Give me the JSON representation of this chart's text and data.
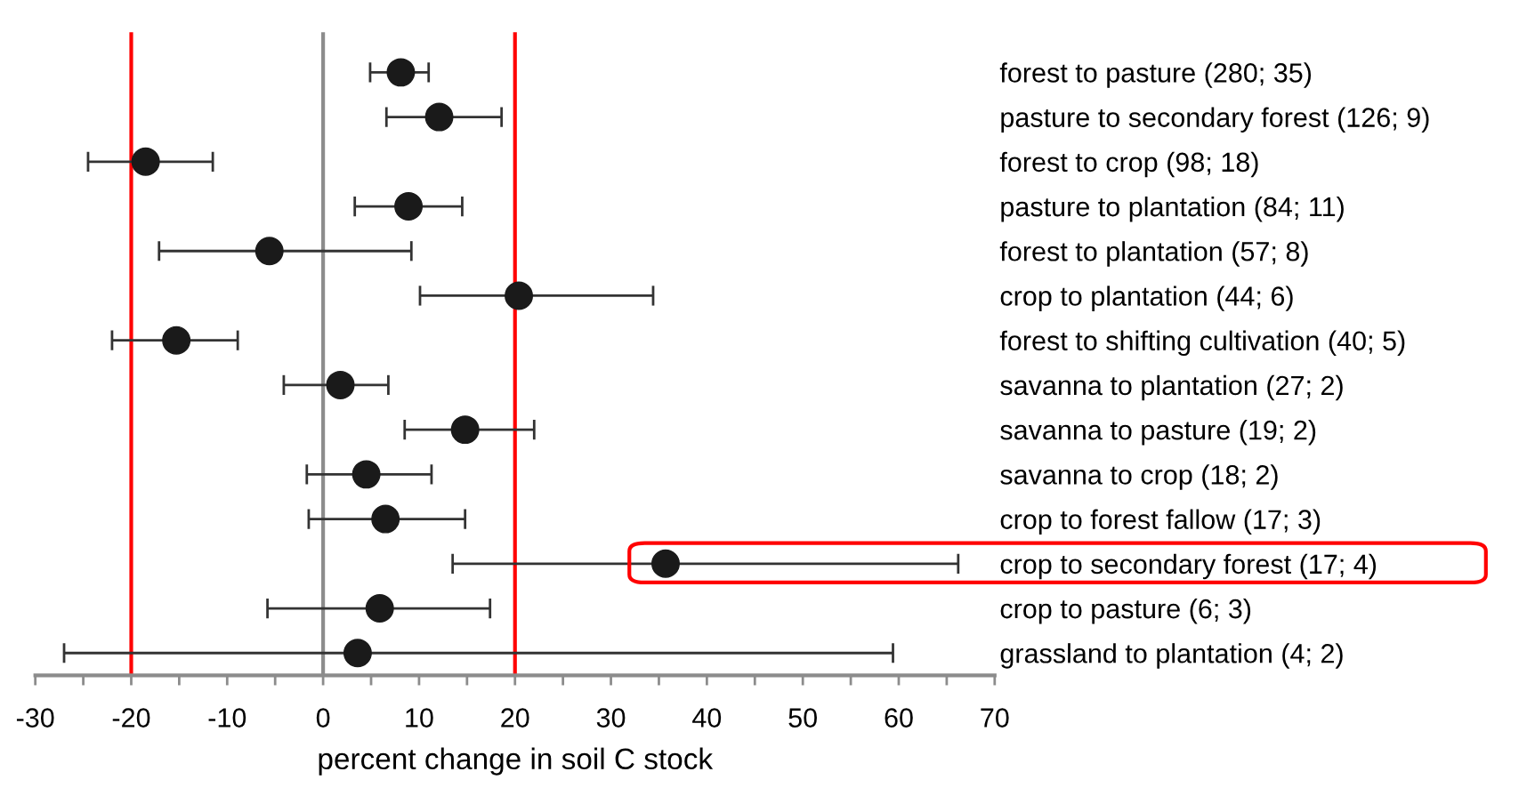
{
  "chart_data": {
    "type": "scatter",
    "orientation": "horizontal",
    "xlabel": "percent change in soil C stock",
    "categories": [
      "forest to pasture (280; 35)",
      "pasture to secondary forest (126; 9)",
      "forest to crop (98; 18)",
      "pasture to plantation (84; 11)",
      "forest to plantation (57; 8)",
      "crop to plantation (44; 6)",
      "forest to shifting cultivation (40; 5)",
      "savanna to plantation (27; 2)",
      "savanna to pasture (19; 2)",
      "savanna to crop (18; 2)",
      "crop to forest fallow (17; 3)",
      "crop to secondary forest (17; 4)",
      "crop to pasture (6; 3)",
      "grassland to plantation (4; 2)"
    ],
    "values": [
      8.1,
      12.1,
      -18.5,
      8.9,
      -5.6,
      20.4,
      -15.3,
      1.8,
      14.8,
      4.5,
      6.5,
      35.7,
      5.9,
      3.6
    ],
    "errors": [
      [
        4.9,
        11.0
      ],
      [
        6.6,
        18.6
      ],
      [
        -24.5,
        -11.5
      ],
      [
        3.3,
        14.5
      ],
      [
        -17.1,
        9.2
      ],
      [
        10.1,
        34.4
      ],
      [
        -22.0,
        -8.9
      ],
      [
        -4.1,
        6.8
      ],
      [
        8.5,
        22.0
      ],
      [
        -1.7,
        11.3
      ],
      [
        -1.5,
        14.8
      ],
      [
        13.5,
        66.2
      ],
      [
        -5.8,
        17.4
      ],
      [
        -27.0,
        59.4
      ]
    ],
    "color": "#1a1a1a",
    "marker": "circle",
    "grid": false,
    "legend": false,
    "xlim": [
      -30,
      70
    ],
    "xticks": [
      -30,
      {
        "value": -25,
        "label": null
      },
      -20,
      {
        "value": -15,
        "label": null
      },
      -10,
      {
        "value": -5,
        "label": null
      },
      0,
      {
        "value": 5,
        "label": null
      },
      10,
      {
        "value": 15,
        "label": null
      },
      20,
      {
        "value": 25,
        "label": null
      },
      30,
      {
        "value": 35,
        "label": null
      },
      40,
      {
        "value": 45,
        "label": null
      },
      50,
      {
        "value": 55,
        "label": null
      },
      60,
      {
        "value": 65,
        "label": null
      },
      70
    ],
    "ref_lines": [
      {
        "axis": "x",
        "value": 0,
        "color": "#8c8c8c"
      },
      {
        "axis": "x",
        "value": -20,
        "color": "#ff0000"
      },
      {
        "axis": "x",
        "value": 20,
        "color": "#ff0000"
      }
    ]
  }
}
